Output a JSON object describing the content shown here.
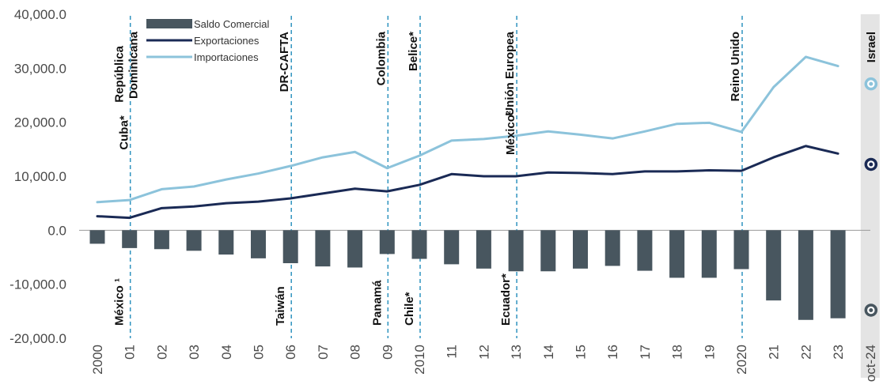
{
  "chart_data": {
    "type": "bar+line",
    "categories": [
      "2000",
      "01",
      "02",
      "03",
      "04",
      "05",
      "06",
      "07",
      "08",
      "09",
      "2010",
      "11",
      "12",
      "13",
      "14",
      "15",
      "16",
      "17",
      "18",
      "19",
      "2020",
      "21",
      "22",
      "23",
      "oct-24"
    ],
    "yticks": [
      "40,000.0",
      "30,000.0",
      "20,000.0",
      "10,000.0",
      "0.0",
      "-10,000.0",
      "-20,000.0"
    ],
    "ylim": [
      -20000,
      40000
    ],
    "legend": [
      "Saldo Comercial",
      "Exportaciones",
      "Importaciones"
    ],
    "series": [
      {
        "name": "Saldo Comercial",
        "type": "bar",
        "color": "#48565f",
        "values": [
          -2500,
          -3300,
          -3500,
          -3800,
          -4500,
          -5200,
          -6100,
          -6700,
          -6900,
          -4400,
          -5300,
          -6300,
          -7100,
          -7600,
          -7600,
          -7100,
          -6600,
          -7500,
          -8800,
          -8800,
          -7200,
          -13000,
          -16600,
          -16300,
          -14800
        ]
      },
      {
        "name": "Exportaciones",
        "type": "line",
        "color": "#1a2a55",
        "values": [
          2600,
          2300,
          4100,
          4400,
          5000,
          5300,
          5900,
          6800,
          7700,
          7200,
          8400,
          10400,
          10000,
          10000,
          10700,
          10600,
          10400,
          10900,
          10900,
          11100,
          11000,
          13500,
          15600,
          14200,
          12200
        ]
      },
      {
        "name": "Importaciones",
        "type": "line",
        "color": "#8cc3db",
        "values": [
          5200,
          5600,
          7600,
          8100,
          9400,
          10500,
          11900,
          13500,
          14500,
          11500,
          13800,
          16600,
          16900,
          17500,
          18300,
          17700,
          17000,
          18300,
          19700,
          19900,
          18200,
          26500,
          32100,
          30400,
          27100
        ]
      }
    ],
    "agreements": [
      {
        "index": 1,
        "top": [
          "República",
          "Dominicana"
        ],
        "mid": "Cuba*",
        "bottom": "México ¹"
      },
      {
        "index": 6,
        "top": [
          "DR-CAFTA"
        ],
        "mid": "",
        "bottom": "Taiwán"
      },
      {
        "index": 9,
        "top": [
          "Colombia"
        ],
        "mid": "",
        "bottom": "Panamá"
      },
      {
        "index": 10,
        "top": [
          "Belice*"
        ],
        "mid": "",
        "bottom": "Chile*"
      },
      {
        "index": 13,
        "top": [
          "Unión Europea"
        ],
        "mid": "México²",
        "bottom": "Ecuador*"
      },
      {
        "index": 20,
        "top": [
          "Reino Unido"
        ],
        "mid": "",
        "bottom": ""
      },
      {
        "index": 24,
        "top": [
          "Israel"
        ],
        "mid": "",
        "bottom": ""
      }
    ],
    "shaded_last_period": true,
    "grid": false
  }
}
